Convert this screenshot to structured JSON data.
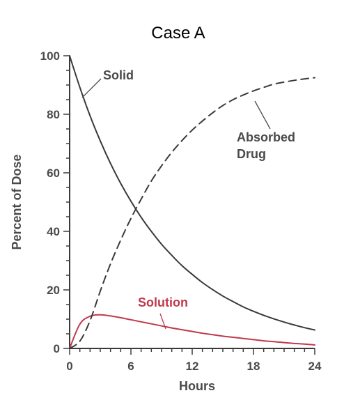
{
  "chart_data": {
    "type": "line",
    "title": "Case A",
    "xlabel": "Hours",
    "ylabel": "Percent of Dose",
    "xlim": [
      0,
      24
    ],
    "ylim": [
      0,
      100
    ],
    "xticks": [
      0,
      6,
      12,
      18,
      24
    ],
    "yticks": [
      0,
      20,
      40,
      60,
      80,
      100
    ],
    "grid": false,
    "legend": "none",
    "x": [
      0,
      1,
      2,
      3,
      4,
      5,
      6,
      7,
      8,
      9,
      10,
      11,
      12,
      13,
      14,
      15,
      16,
      17,
      18,
      19,
      20,
      21,
      22,
      23,
      24
    ],
    "series": [
      {
        "name": "Solid",
        "color": "#3a3a3a",
        "style": "solid",
        "values": [
          100,
          89.2,
          79.5,
          70.9,
          63.2,
          56.4,
          50.3,
          44.8,
          40.0,
          35.6,
          31.8,
          28.3,
          25.3,
          22.5,
          20.1,
          17.9,
          16.0,
          14.2,
          12.7,
          11.3,
          10.1,
          9.0,
          8.0,
          7.1,
          6.3
        ]
      },
      {
        "name": "Solution",
        "color": "#c0394b",
        "style": "solid",
        "values": [
          0,
          8.3,
          11.0,
          11.5,
          11.1,
          10.5,
          9.8,
          9.1,
          8.4,
          7.7,
          7.0,
          6.4,
          5.8,
          5.2,
          4.7,
          4.2,
          3.8,
          3.4,
          3.0,
          2.6,
          2.3,
          2.0,
          1.7,
          1.5,
          1.2
        ]
      },
      {
        "name": "Absorbed Drug",
        "color": "#3a3a3a",
        "style": "dashed",
        "values": [
          0,
          2.5,
          9.5,
          19.6,
          28.9,
          37.0,
          44.4,
          51.0,
          57.2,
          62.4,
          67.0,
          71.0,
          74.6,
          77.7,
          80.5,
          83.0,
          85.0,
          86.6,
          88.0,
          89.2,
          90.3,
          91.0,
          91.6,
          92.1,
          92.5
        ]
      }
    ],
    "annotations": [
      {
        "text": "Solid",
        "series": "Solid"
      },
      {
        "text": "Absorbed\nDrug",
        "series": "Absorbed Drug"
      },
      {
        "text": "Solution",
        "series": "Solution"
      }
    ]
  }
}
